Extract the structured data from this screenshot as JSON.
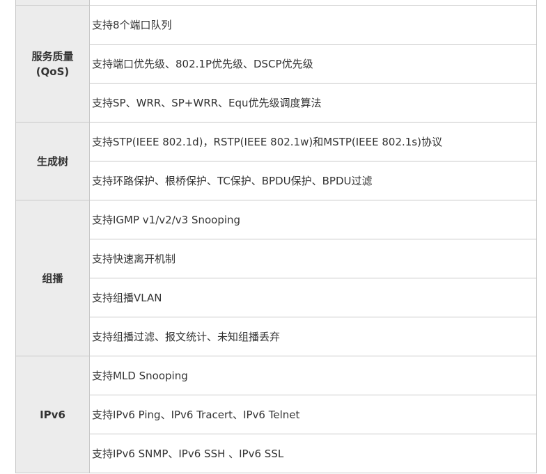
{
  "table": {
    "groups": [
      {
        "label_lines": [
          "服务质量",
          "(QoS)"
        ],
        "items": [
          "支持8个端口队列",
          "支持端口优先级、802.1P优先级、DSCP优先级",
          "支持SP、WRR、SP+WRR、Equ优先级调度算法"
        ]
      },
      {
        "label_lines": [
          "生成树"
        ],
        "items": [
          "支持STP(IEEE 802.1d)，RSTP(IEEE 802.1w)和MSTP(IEEE 802.1s)协议",
          "支持环路保护、根桥保护、TC保护、BPDU保护、BPDU过滤"
        ]
      },
      {
        "label_lines": [
          "组播"
        ],
        "items": [
          "支持IGMP v1/v2/v3 Snooping",
          "支持快速离开机制",
          "支持组播VLAN",
          "支持组播过滤、报文统计、未知组播丢弃"
        ]
      },
      {
        "label_lines": [
          "IPv6"
        ],
        "items": [
          "支持MLD Snooping",
          "支持IPv6 Ping、IPv6 Tracert、IPv6 Telnet",
          "支持IPv6 SNMP、IPv6 SSH 、IPv6 SSL"
        ]
      }
    ]
  }
}
